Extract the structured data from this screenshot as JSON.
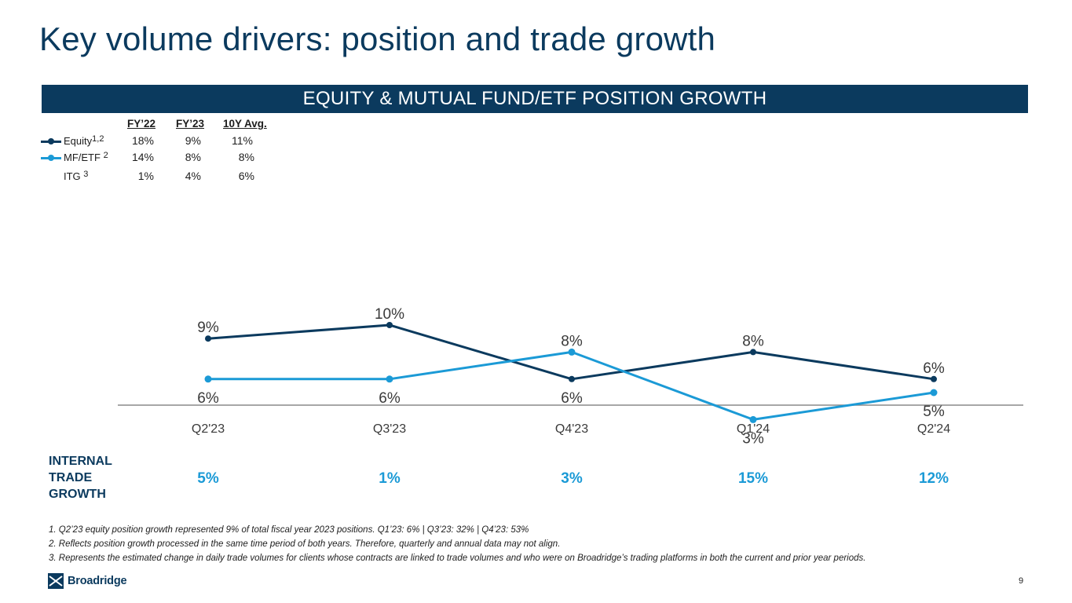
{
  "title": "Key volume drivers: position and trade growth",
  "banner": "EQUITY & MUTUAL FUND/ETF POSITION GROWTH",
  "legend": {
    "headers": [
      "FY’22",
      "FY’23",
      "10Y Avg."
    ],
    "rows": [
      {
        "label": "Equity",
        "sup": "1,2",
        "values": [
          "18%",
          "9%",
          "11%"
        ],
        "color": "#0b3a5e"
      },
      {
        "label": "MF/ETF",
        "sup": "2",
        "values": [
          "14%",
          "8%",
          "8%"
        ],
        "color": "#1b9ad6"
      },
      {
        "label": "ITG",
        "sup": "3",
        "values": [
          "1%",
          "4%",
          "6%"
        ]
      }
    ]
  },
  "chart_data": {
    "type": "line",
    "categories": [
      "Q2'23",
      "Q3'23",
      "Q4'23",
      "Q1'24",
      "Q2'24"
    ],
    "series": [
      {
        "name": "Equity",
        "values": [
          9,
          10,
          6,
          8,
          6
        ],
        "labels": [
          "9%",
          "10%",
          "6%",
          "8%",
          "6%"
        ],
        "color": "#0b3a5e"
      },
      {
        "name": "MF/ETF",
        "values": [
          6,
          6,
          8,
          3,
          5
        ],
        "labels": [
          "6%",
          "6%",
          "8%",
          "3%",
          "5%"
        ],
        "color": "#1b9ad6"
      }
    ],
    "ylim": [
      0,
      12
    ],
    "title": "EQUITY & MUTUAL FUND/ETF POSITION GROWTH",
    "xlabel": "",
    "ylabel": ""
  },
  "itg": {
    "label_lines": [
      "INTERNAL",
      "TRADE",
      "GROWTH"
    ],
    "values": [
      "5%",
      "1%",
      "3%",
      "15%",
      "12%"
    ]
  },
  "footnotes": [
    "1. Q2’23 equity position growth represented 9% of total fiscal year 2023 positions. Q1’23: 6% | Q3’23: 32% | Q4’23: 53%",
    "2. Reflects position growth processed in the same time period of both years. Therefore, quarterly and annual data may not align.",
    "3. Represents the estimated change in daily trade volumes for clients whose contracts are linked to trade volumes and who were on Broadridge’s trading platforms in both the current and prior year periods."
  ],
  "logo_text": "Broadridge",
  "page_number": "9"
}
